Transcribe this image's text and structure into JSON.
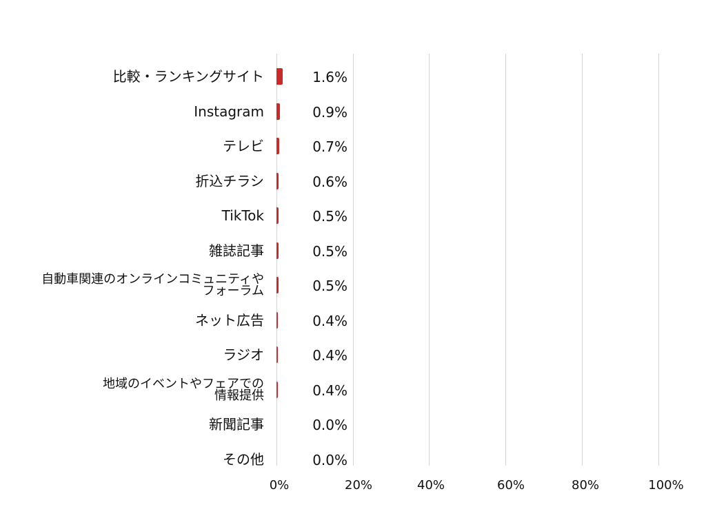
{
  "chart_data": {
    "type": "bar",
    "orientation": "horizontal",
    "title": "",
    "xlabel": "",
    "ylabel": "",
    "xlim": [
      0,
      100
    ],
    "grid": true,
    "legend": null,
    "bar_color": "#CC2A2A",
    "categories": [
      "比較・ランキングサイト",
      "Instagram",
      "テレビ",
      "折込チラシ",
      "TikTok",
      "雑誌記事",
      "自動車関連のオンラインコミュニティやフォーラム",
      "ネット広告",
      "ラジオ",
      "地域のイベントやフェアでの情報提供",
      "新聞記事",
      "その他"
    ],
    "values": [
      1.6,
      0.9,
      0.7,
      0.6,
      0.5,
      0.5,
      0.5,
      0.4,
      0.4,
      0.4,
      0.0,
      0.0
    ],
    "value_labels": [
      "1.6%",
      "0.9%",
      "0.7%",
      "0.6%",
      "0.5%",
      "0.5%",
      "0.5%",
      "0.4%",
      "0.4%",
      "0.4%",
      "0.0%",
      "0.0%"
    ],
    "x_ticks": [
      "0%",
      "20%",
      "40%",
      "60%",
      "80%",
      "100%"
    ]
  },
  "rows": [
    {
      "line1": "比較・ランキングサイト",
      "line2": "",
      "value": "1.6%"
    },
    {
      "line1": "Instagram",
      "line2": "",
      "value": "0.9%"
    },
    {
      "line1": "テレビ",
      "line2": "",
      "value": "0.7%"
    },
    {
      "line1": "折込チラシ",
      "line2": "",
      "value": "0.6%"
    },
    {
      "line1": "TikTok",
      "line2": "",
      "value": "0.5%"
    },
    {
      "line1": "雑誌記事",
      "line2": "",
      "value": "0.5%"
    },
    {
      "line1": "自動車関連のオンラインコミュニティや",
      "line2": "フォーラム",
      "value": "0.5%"
    },
    {
      "line1": "ネット広告",
      "line2": "",
      "value": "0.4%"
    },
    {
      "line1": "ラジオ",
      "line2": "",
      "value": "0.4%"
    },
    {
      "line1": "地域のイベントやフェアでの",
      "line2": "情報提供",
      "value": "0.4%"
    },
    {
      "line1": "新聞記事",
      "line2": "",
      "value": "0.0%"
    },
    {
      "line1": "その他",
      "line2": "",
      "value": "0.0%"
    }
  ],
  "axis": {
    "ticks": [
      "0%",
      "20%",
      "40%",
      "60%",
      "80%",
      "100%"
    ]
  }
}
